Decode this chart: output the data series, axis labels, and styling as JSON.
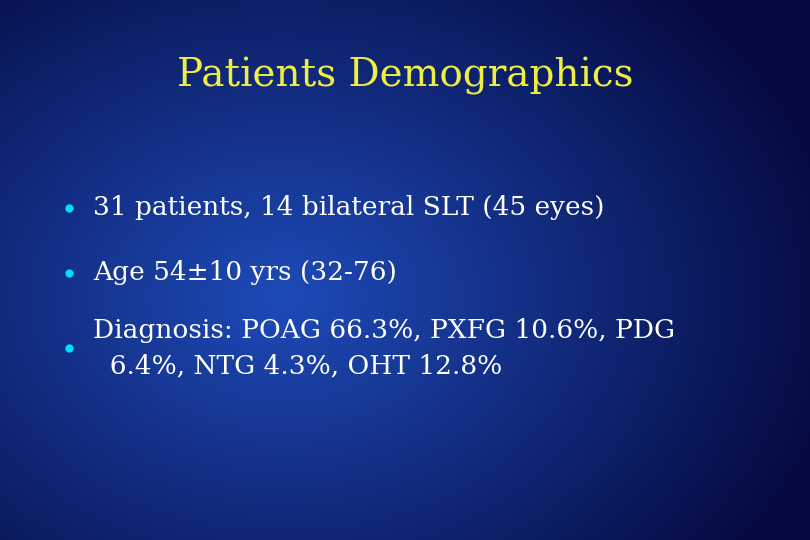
{
  "title": "Patients Demographics",
  "title_color": "#EEEE44",
  "title_fontsize": 28,
  "bullet_color": "#00DDFF",
  "text_color": "#FFFFFF",
  "text_fontsize": 19,
  "bullets": [
    "31 patients, 14 bilateral SLT (45 eyes)",
    "Age 54±10 yrs (32-76)",
    "Diagnosis: POAG 66.3%, PXFG 10.6%, PDG\n  6.4%, NTG 4.3%, OHT 12.8%"
  ],
  "fig_width": 8.1,
  "fig_height": 5.4,
  "dpi": 100,
  "bg_dark": "#050a40",
  "bg_mid": "#1a3c9a",
  "bg_light": "#2255bb"
}
